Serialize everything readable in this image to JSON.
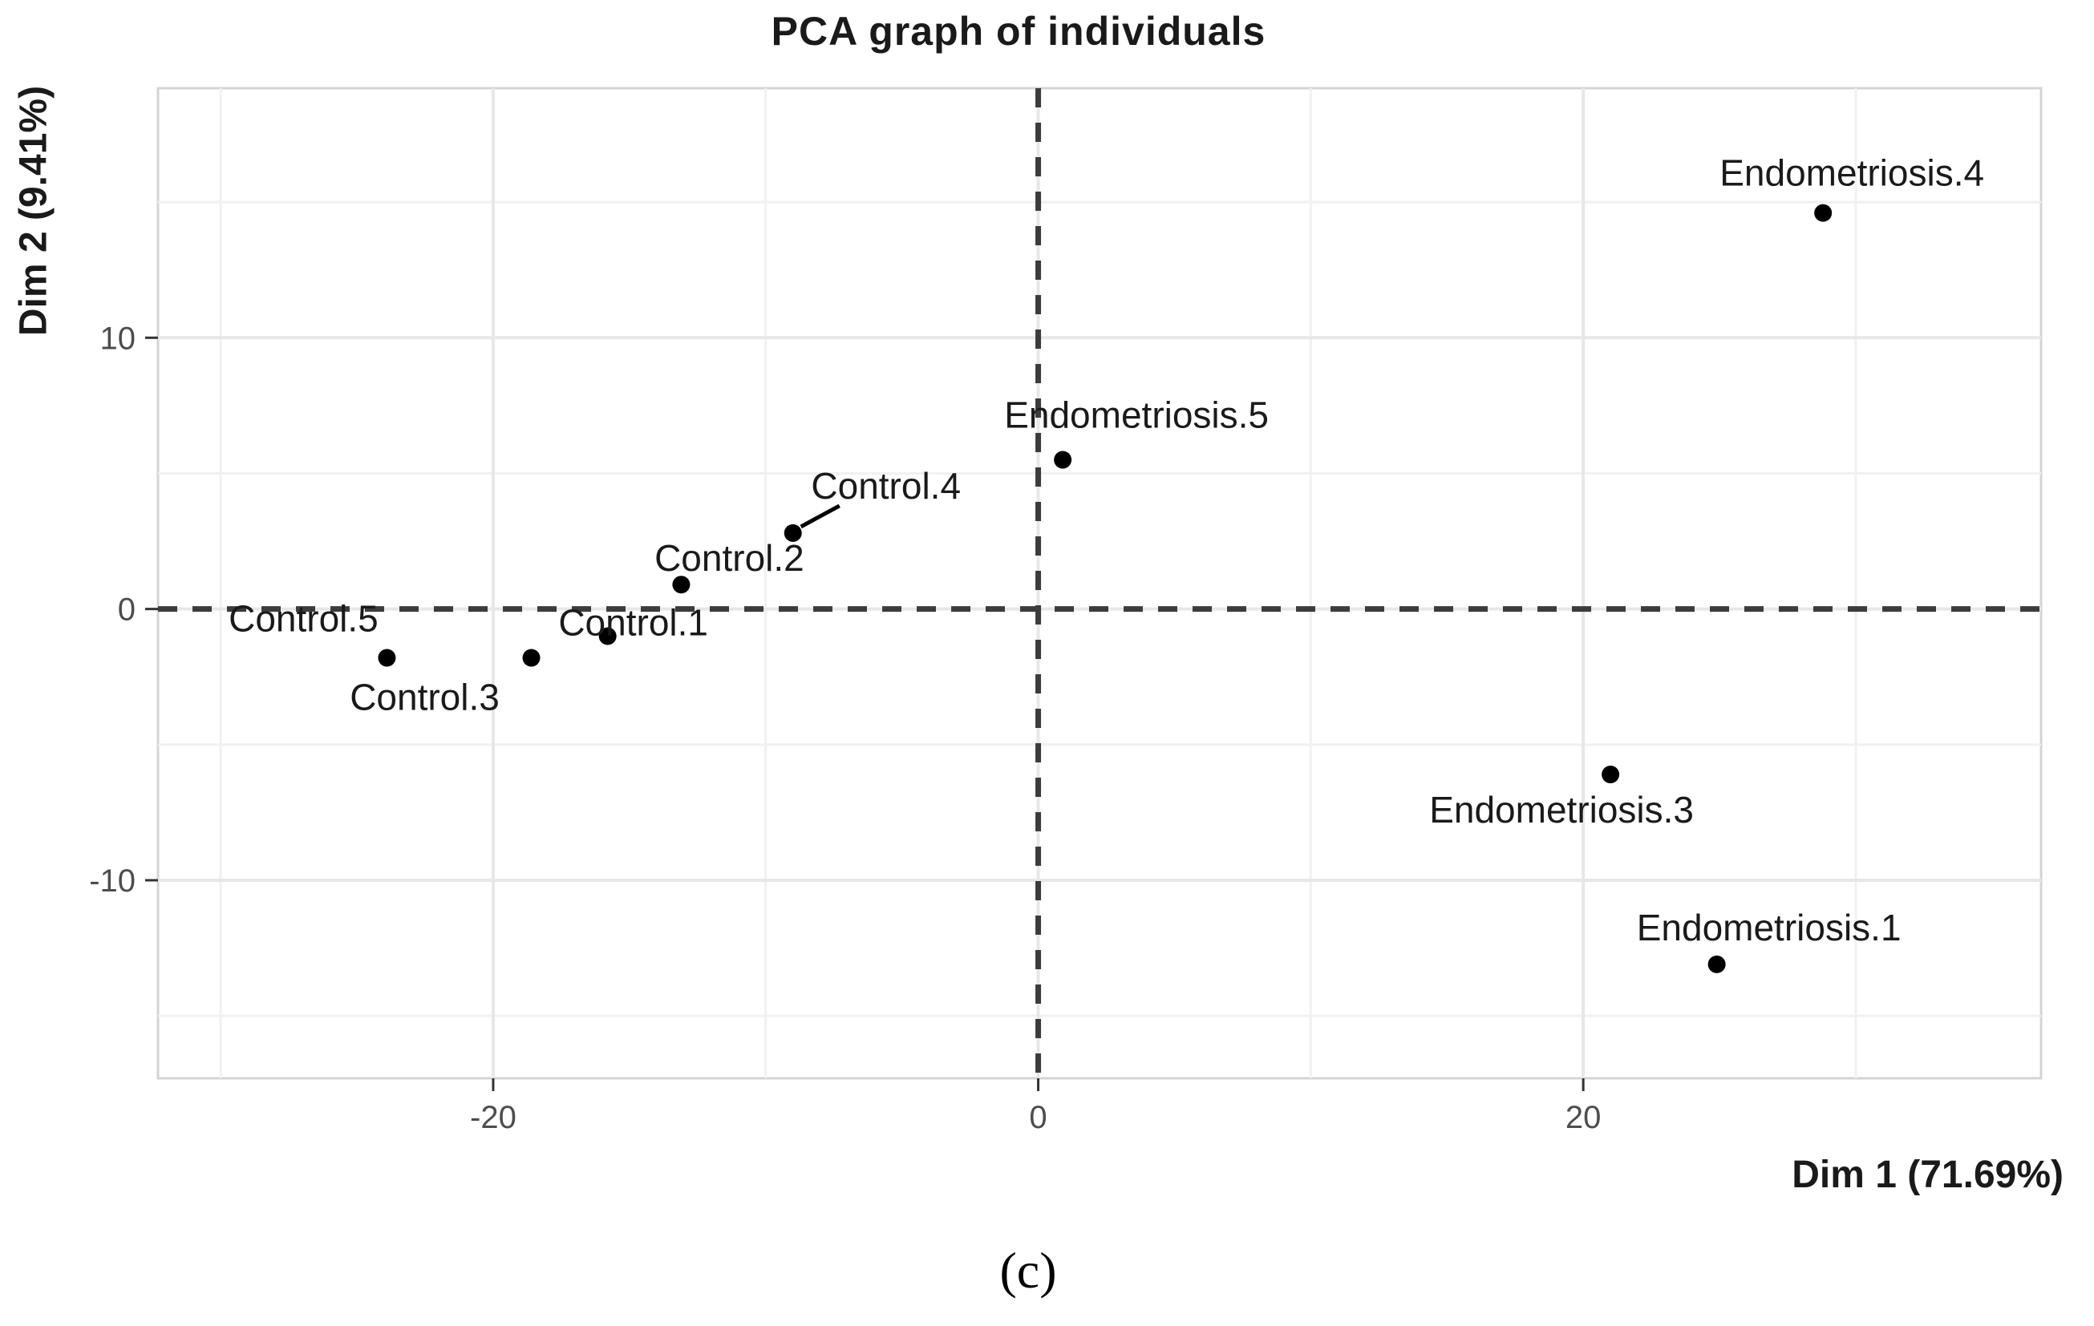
{
  "figure": {
    "title": "PCA graph of individuals",
    "caption": "(c)"
  },
  "chart_data": {
    "type": "scatter",
    "title": "PCA graph of individuals",
    "xlabel": "Dim 1 (71.69%)",
    "ylabel": "Dim 2 (9.41%)",
    "xlim": [
      -32.3,
      36.8
    ],
    "ylim": [
      -17.3,
      19.2
    ],
    "x_ticks": [
      -20,
      0,
      20
    ],
    "y_ticks": [
      -10,
      0,
      10
    ],
    "x_minor_gridlines": [
      -30,
      -10,
      10,
      30
    ],
    "y_minor_gridlines": [
      -15,
      -5,
      5,
      15
    ],
    "grid": "on",
    "legend": "none",
    "reference_lines": [
      {
        "axis": "x",
        "value": 0,
        "style": "dashed"
      },
      {
        "axis": "y",
        "value": 0,
        "style": "dashed"
      }
    ],
    "series": [
      {
        "name": "individuals",
        "marker": "point",
        "color": "#000000",
        "points": [
          {
            "label": "Control.1",
            "x": -15.8,
            "y": -1.0,
            "label_dx": 32,
            "label_dy": -17,
            "callout": false
          },
          {
            "label": "Control.2",
            "x": -13.1,
            "y": 0.9,
            "label_dx": 60,
            "label_dy": -33,
            "callout": false
          },
          {
            "label": "Control.3",
            "x": -18.6,
            "y": -1.8,
            "label_dx": -133,
            "label_dy": 49,
            "callout": false
          },
          {
            "label": "Control.4",
            "x": -9.0,
            "y": 2.8,
            "label_dx": 116,
            "label_dy": -59,
            "callout": true
          },
          {
            "label": "Control.5",
            "x": -23.9,
            "y": -1.8,
            "label_dx": -104,
            "label_dy": -49,
            "callout": false
          },
          {
            "label": "Endometriosis.1",
            "x": 24.9,
            "y": -13.1,
            "label_dx": 65,
            "label_dy": -46,
            "callout": false
          },
          {
            "label": "Endometriosis.3",
            "x": 21.0,
            "y": -6.1,
            "label_dx": -61,
            "label_dy": 44,
            "callout": false
          },
          {
            "label": "Endometriosis.4",
            "x": 28.8,
            "y": 14.6,
            "label_dx": 36,
            "label_dy": -50,
            "callout": false
          },
          {
            "label": "Endometriosis.5",
            "x": 0.9,
            "y": 5.5,
            "label_dx": 92,
            "label_dy": -56,
            "callout": false
          }
        ]
      }
    ],
    "colors": {
      "point": "#000000",
      "point_label": "#1a1a1a",
      "tick_label": "#4d4d4d",
      "tick_mark": "#333333",
      "major_gridline": "#e7e7e7",
      "minor_gridline": "#f1f1f1",
      "panel_border": "#d4d4d4",
      "reference_line": "#3c3c3c",
      "background": "#ffffff"
    }
  }
}
